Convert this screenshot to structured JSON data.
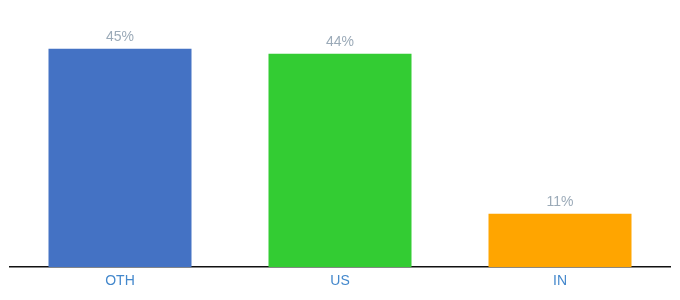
{
  "chart_data": {
    "type": "bar",
    "categories": [
      "OTH",
      "US",
      "IN"
    ],
    "values": [
      45,
      44,
      11
    ],
    "value_labels": [
      "45%",
      "44%",
      "11%"
    ],
    "colors": [
      "#4472C4",
      "#33CC33",
      "#FFA500"
    ],
    "ylim": [
      0,
      53
    ],
    "data_labels": true,
    "grid": false,
    "tick_labels": "x"
  }
}
